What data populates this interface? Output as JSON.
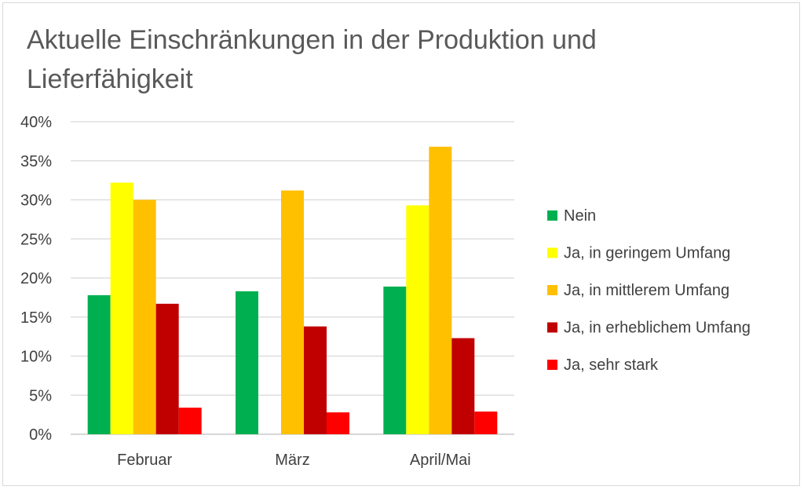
{
  "chart_data": {
    "type": "bar",
    "title": "Aktuelle Einschränkungen in der Produktion und Lieferfähigkeit",
    "xlabel": "",
    "ylabel": "",
    "ylim": [
      0,
      40
    ],
    "y_ticks": [
      "0%",
      "5%",
      "10%",
      "15%",
      "20%",
      "25%",
      "30%",
      "35%",
      "40%"
    ],
    "grid": true,
    "legend_position": "right",
    "categories": [
      "Februar",
      "März",
      "April/Mai"
    ],
    "series": [
      {
        "name": "Nein",
        "color": "#00b050",
        "values": [
          17.8,
          18.3,
          18.9
        ]
      },
      {
        "name": "Ja, in geringem Umfang",
        "color": "#ffff00",
        "values": [
          32.2,
          null,
          29.3
        ]
      },
      {
        "name": "Ja, in mittlerem Umfang",
        "color": "#ffc000",
        "values": [
          30.0,
          31.2,
          36.8
        ]
      },
      {
        "name": "Ja, in erheblichem Umfang",
        "color": "#c00000",
        "values": [
          16.7,
          13.8,
          12.3
        ]
      },
      {
        "name": "Ja, sehr stark",
        "color": "#ff0000",
        "values": [
          3.4,
          2.8,
          2.9
        ]
      }
    ]
  }
}
